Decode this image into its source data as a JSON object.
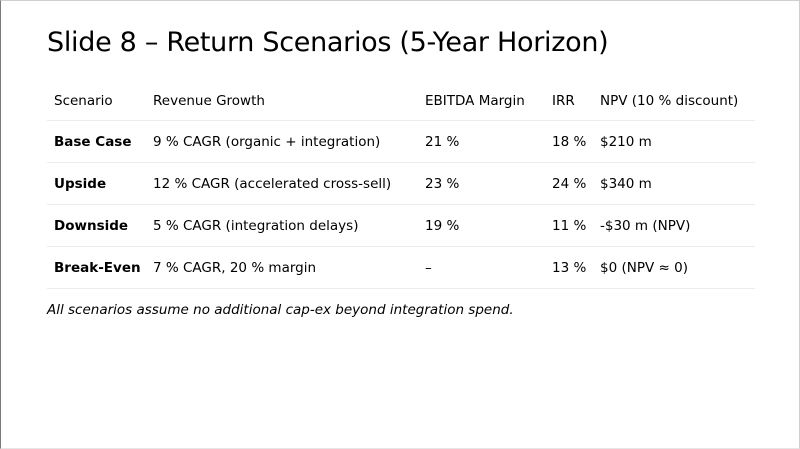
{
  "slide": {
    "title": "Slide 8 – Return Scenarios (5-Year Horizon)",
    "footnote": "All scenarios assume no additional cap-ex beyond integration spend."
  },
  "table": {
    "headers": [
      "Scenario",
      "Revenue Growth",
      "EBITDA Margin",
      "IRR",
      "NPV (10 % discount)"
    ],
    "rows": [
      [
        "Base Case",
        "9 % CAGR (organic + integration)",
        "21 %",
        "18 %",
        "$210 m"
      ],
      [
        "Upside",
        "12 % CAGR (accelerated cross-sell)",
        "23 %",
        "24 %",
        "$340 m"
      ],
      [
        "Downside",
        "5 % CAGR (integration delays)",
        "19 %",
        "11 %",
        "-$30 m (NPV)"
      ],
      [
        "Break-Even",
        "7 % CAGR, 20 % margin",
        "–",
        "13 %",
        "$0 (NPV ≈ 0)"
      ]
    ]
  }
}
